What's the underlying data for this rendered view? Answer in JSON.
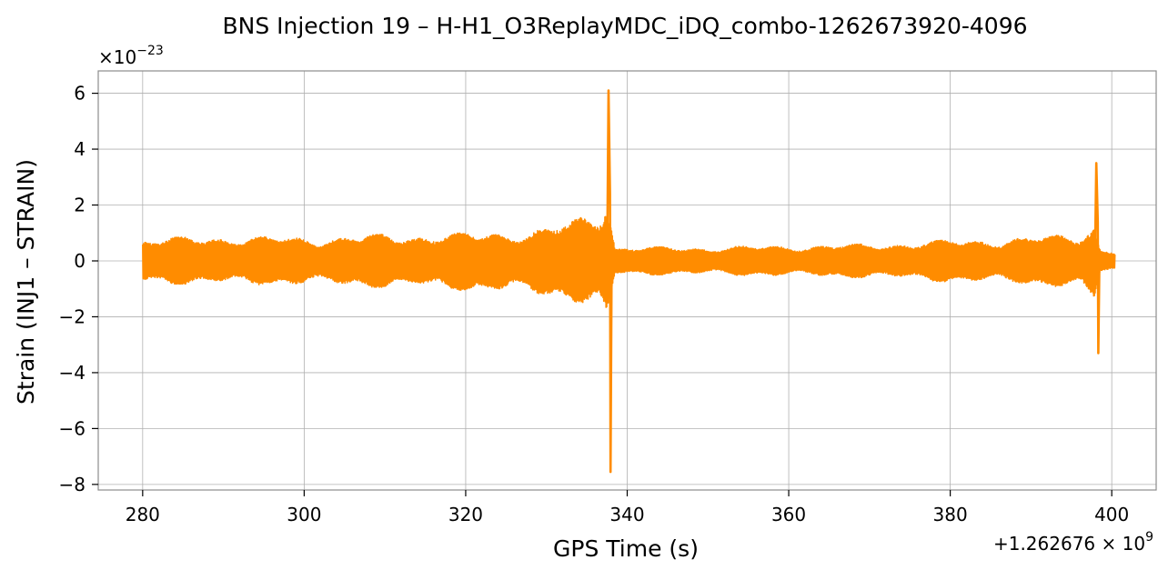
{
  "chart_data": {
    "type": "line",
    "title": "BNS Injection 19 – H-H1_O3ReplayMDC_iDQ_combo-1262673920-4096",
    "xlabel": "GPS Time (s)",
    "ylabel": "Strain (INJ1 – STRAIN)",
    "x_offset_label": {
      "base": "+1.262676 × 10",
      "exponent": "9"
    },
    "y_scale_label": {
      "base": "×10",
      "exponent": "−23"
    },
    "xlim": [
      274.5,
      405.5
    ],
    "ylim": [
      -8.2,
      6.8
    ],
    "grid": true,
    "line_color": "#ff8c00",
    "x_ticks": [
      {
        "value": 280,
        "label": "280"
      },
      {
        "value": 300,
        "label": "300"
      },
      {
        "value": 320,
        "label": "320"
      },
      {
        "value": 340,
        "label": "340"
      },
      {
        "value": 360,
        "label": "360"
      },
      {
        "value": 380,
        "label": "380"
      },
      {
        "value": 400,
        "label": "400"
      }
    ],
    "y_ticks": [
      {
        "value": 6,
        "label": "6"
      },
      {
        "value": 4,
        "label": "4"
      },
      {
        "value": 2,
        "label": "2"
      },
      {
        "value": 0,
        "label": "0"
      },
      {
        "value": -2,
        "label": "−2"
      },
      {
        "value": -4,
        "label": "−4"
      },
      {
        "value": -6,
        "label": "−6"
      },
      {
        "value": -8,
        "label": "−8"
      }
    ],
    "series": [
      {
        "x_start": 280,
        "x_end": 400.4,
        "envelope": [
          {
            "x": 280,
            "upper": 0.8,
            "lower": -0.8
          },
          {
            "x": 290,
            "upper": 0.9,
            "lower": -0.85
          },
          {
            "x": 300,
            "upper": 0.85,
            "lower": -0.85
          },
          {
            "x": 310,
            "upper": 0.95,
            "lower": -0.95
          },
          {
            "x": 320,
            "upper": 1.0,
            "lower": -1.05
          },
          {
            "x": 328,
            "upper": 1.1,
            "lower": -1.2
          },
          {
            "x": 333,
            "upper": 1.4,
            "lower": -1.4
          },
          {
            "x": 336.5,
            "upper": 1.9,
            "lower": -1.8
          },
          {
            "x": 337.5,
            "upper": 2.5,
            "lower": -2.5
          },
          {
            "x": 338.5,
            "upper": 0.5,
            "lower": -0.5
          },
          {
            "x": 350,
            "upper": 0.5,
            "lower": -0.5
          },
          {
            "x": 360,
            "upper": 0.55,
            "lower": -0.55
          },
          {
            "x": 370,
            "upper": 0.6,
            "lower": -0.6
          },
          {
            "x": 380,
            "upper": 0.75,
            "lower": -0.75
          },
          {
            "x": 390,
            "upper": 0.85,
            "lower": -0.85
          },
          {
            "x": 396,
            "upper": 1.0,
            "lower": -1.0
          },
          {
            "x": 397.8,
            "upper": 1.4,
            "lower": -1.6
          },
          {
            "x": 398.6,
            "upper": 0.4,
            "lower": -0.4
          },
          {
            "x": 400.4,
            "upper": 0.35,
            "lower": -0.35
          }
        ],
        "spikes": [
          {
            "x": 337.8,
            "max": 6.1,
            "min": -7.55
          },
          {
            "x": 398.2,
            "max": 3.5,
            "min": -3.3
          }
        ]
      }
    ]
  }
}
